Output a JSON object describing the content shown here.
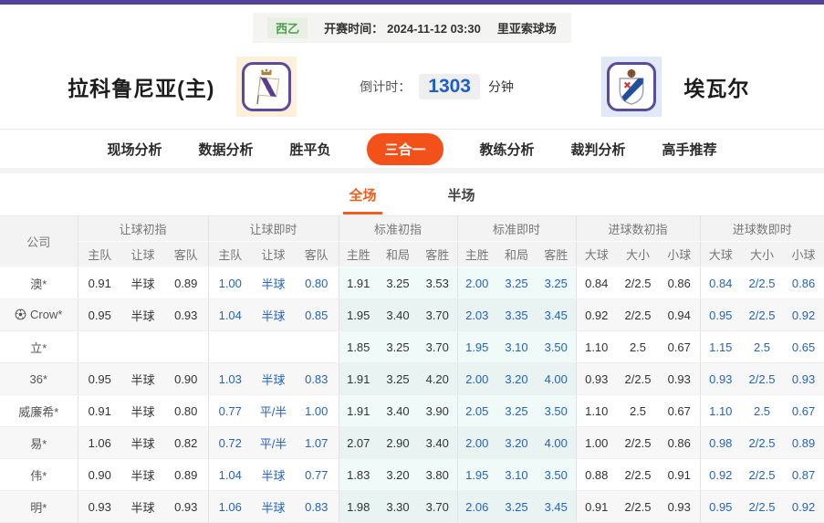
{
  "top": {
    "league": "西乙",
    "kickoff_label": "开赛时间：",
    "kickoff_time": "2024-11-12 03:30",
    "venue": "里亚索球场"
  },
  "match": {
    "home_name": "拉科鲁尼亚(主)",
    "away_name": "埃瓦尔",
    "countdown_label": "倒计时：",
    "countdown_value": "1303",
    "countdown_unit": "分钟",
    "home_logo": "deportivo-crest",
    "away_logo": "eibar-crest"
  },
  "nav": {
    "tabs": [
      {
        "label": "现场分析",
        "active": false
      },
      {
        "label": "数据分析",
        "active": false
      },
      {
        "label": "胜平负",
        "active": false
      },
      {
        "label": "三合一",
        "active": true
      },
      {
        "label": "教练分析",
        "active": false
      },
      {
        "label": "裁判分析",
        "active": false
      },
      {
        "label": "高手推荐",
        "active": false
      }
    ]
  },
  "subtabs": [
    {
      "label": "全场",
      "active": true
    },
    {
      "label": "半场",
      "active": false
    }
  ],
  "table": {
    "company_header": "公司",
    "groups": [
      {
        "label": "让球初指",
        "cols": [
          "主队",
          "让球",
          "客队"
        ],
        "kind": "init"
      },
      {
        "label": "让球即时",
        "cols": [
          "主队",
          "让球",
          "客队"
        ],
        "kind": "live"
      },
      {
        "label": "标准初指",
        "cols": [
          "主胜",
          "和局",
          "客胜"
        ],
        "kind": "init-std"
      },
      {
        "label": "标准即时",
        "cols": [
          "主胜",
          "和局",
          "客胜"
        ],
        "kind": "live-std"
      },
      {
        "label": "进球数初指",
        "cols": [
          "大球",
          "大小",
          "小球"
        ],
        "kind": "init"
      },
      {
        "label": "进球数即时",
        "cols": [
          "大球",
          "大小",
          "小球"
        ],
        "kind": "live"
      }
    ],
    "rows": [
      {
        "company": "澳*",
        "icon": false,
        "cells": [
          [
            "0.91",
            "半球",
            "0.89"
          ],
          [
            "1.00",
            "半球",
            "0.80"
          ],
          [
            "1.91",
            "3.25",
            "3.53"
          ],
          [
            "2.00",
            "3.25",
            "3.25"
          ],
          [
            "0.84",
            "2/2.5",
            "0.86"
          ],
          [
            "0.84",
            "2/2.5",
            "0.86"
          ]
        ]
      },
      {
        "company": "Crow*",
        "icon": true,
        "cells": [
          [
            "0.95",
            "半球",
            "0.93"
          ],
          [
            "1.04",
            "半球",
            "0.85"
          ],
          [
            "1.95",
            "3.40",
            "3.70"
          ],
          [
            "2.03",
            "3.35",
            "3.45"
          ],
          [
            "0.92",
            "2/2.5",
            "0.94"
          ],
          [
            "0.95",
            "2/2.5",
            "0.92"
          ]
        ]
      },
      {
        "company": "立*",
        "icon": false,
        "cells": [
          [
            "",
            "",
            ""
          ],
          [
            "",
            "",
            ""
          ],
          [
            "1.85",
            "3.25",
            "3.70"
          ],
          [
            "1.95",
            "3.10",
            "3.50"
          ],
          [
            "1.10",
            "2.5",
            "0.67"
          ],
          [
            "1.15",
            "2.5",
            "0.65"
          ]
        ]
      },
      {
        "company": "36*",
        "icon": false,
        "cells": [
          [
            "0.95",
            "半球",
            "0.90"
          ],
          [
            "1.03",
            "半球",
            "0.83"
          ],
          [
            "1.91",
            "3.25",
            "4.20"
          ],
          [
            "2.00",
            "3.20",
            "4.00"
          ],
          [
            "0.93",
            "2/2.5",
            "0.93"
          ],
          [
            "0.93",
            "2/2.5",
            "0.93"
          ]
        ]
      },
      {
        "company": "威廉希*",
        "icon": false,
        "cells": [
          [
            "0.91",
            "半球",
            "0.80"
          ],
          [
            "0.77",
            "平/半",
            "1.00"
          ],
          [
            "1.91",
            "3.40",
            "3.90"
          ],
          [
            "2.05",
            "3.25",
            "3.50"
          ],
          [
            "1.10",
            "2.5",
            "0.67"
          ],
          [
            "1.10",
            "2.5",
            "0.67"
          ]
        ]
      },
      {
        "company": "易*",
        "icon": false,
        "cells": [
          [
            "1.06",
            "半球",
            "0.82"
          ],
          [
            "0.72",
            "平/半",
            "1.07"
          ],
          [
            "2.07",
            "2.90",
            "3.40"
          ],
          [
            "2.00",
            "3.20",
            "4.00"
          ],
          [
            "1.00",
            "2/2.5",
            "0.86"
          ],
          [
            "0.98",
            "2/2.5",
            "0.89"
          ]
        ]
      },
      {
        "company": "伟*",
        "icon": false,
        "cells": [
          [
            "0.90",
            "半球",
            "0.89"
          ],
          [
            "1.04",
            "半球",
            "0.77"
          ],
          [
            "1.83",
            "3.20",
            "3.80"
          ],
          [
            "1.95",
            "3.10",
            "3.50"
          ],
          [
            "0.88",
            "2/2.5",
            "0.91"
          ],
          [
            "0.92",
            "2/2.5",
            "0.87"
          ]
        ]
      },
      {
        "company": "明*",
        "icon": false,
        "cells": [
          [
            "0.93",
            "半球",
            "0.93"
          ],
          [
            "1.06",
            "半球",
            "0.83"
          ],
          [
            "1.98",
            "3.30",
            "3.70"
          ],
          [
            "2.06",
            "3.25",
            "3.45"
          ],
          [
            "0.91",
            "2/2.5",
            "0.93"
          ],
          [
            "0.95",
            "2/2.5",
            "0.92"
          ]
        ]
      }
    ]
  },
  "colors": {
    "brand_purple": "#52409a",
    "accent_orange": "#f4501a",
    "subtab_orange": "#f25c1f",
    "odds_live_blue": "#2563c0",
    "countdown_blue": "#1d5ec9",
    "league_green": "#48a14a",
    "std_col_bg": "#effaf9"
  }
}
